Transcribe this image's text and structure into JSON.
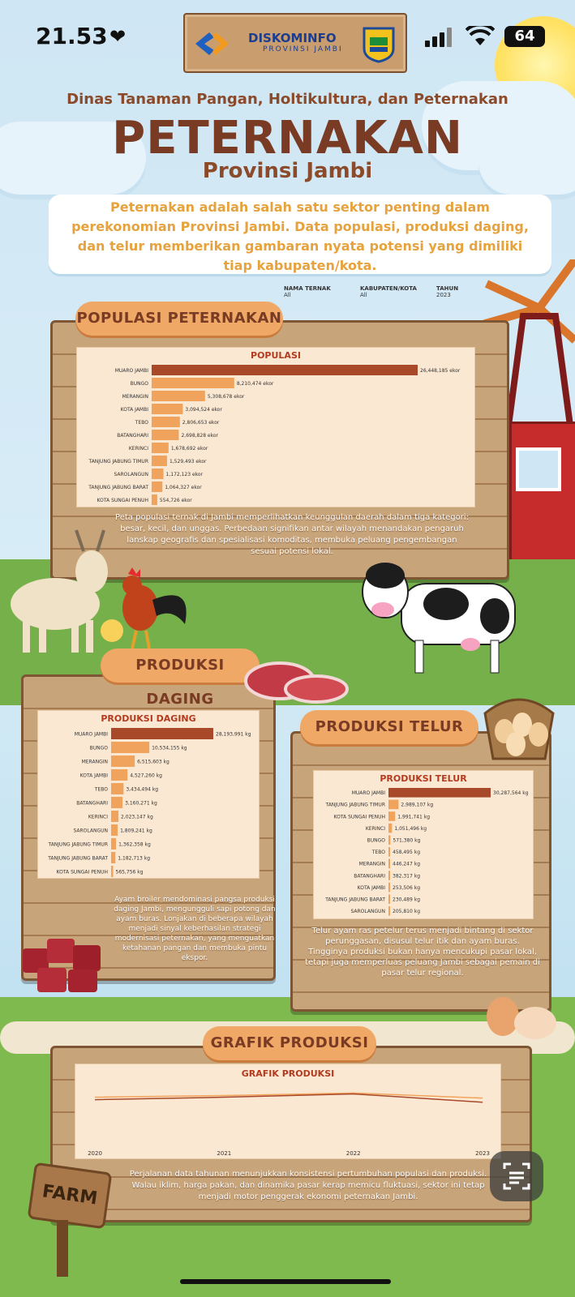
{
  "status_bar": {
    "time": "21.53",
    "battery": "64"
  },
  "banner": {
    "brand": "DISKOMINFO",
    "sub": "PROVINSI JAMBI"
  },
  "header": {
    "dept": "Dinas Tanaman Pangan, Holtikultura, dan Peternakan",
    "title": "PETERNAKAN",
    "subtitle": "Provinsi Jambi",
    "intro": "Peternakan adalah salah satu sektor penting dalam perekonomian Provinsi Jambi. Data populasi, produksi daging, dan telur memberikan gambaran nyata potensi yang dimiliki tiap kabupaten/kota."
  },
  "filters": [
    {
      "label": "NAMA TERNAK",
      "value": "All"
    },
    {
      "label": "KABUPATEN/KOTA",
      "value": "All"
    },
    {
      "label": "TAHUN",
      "value": "2023"
    }
  ],
  "sections": {
    "populasi": {
      "pill": "POPULASI PETERNAKAN",
      "caption": "Peta populasi ternak di Jambi memperlihatkan keunggulan daerah dalam tiga kategori: besar, kecil, dan unggas. Perbedaan signifikan antar wilayah menandakan pengaruh lanskap geografis dan spesialisasi komoditas, membuka peluang pengembangan sesuai potensi lokal."
    },
    "daging": {
      "pill": "PRODUKSI DAGING",
      "caption": "Ayam broiler mendominasi pangsa produksi daging Jambi, mengungguli sapi potong dan ayam buras. Lonjakan di beberapa wilayah menjadi sinyal keberhasilan strategi modernisasi peternakan, yang menguatkan ketahanan pangan dan membuka pintu ekspor."
    },
    "telur": {
      "pill": "PRODUKSI TELUR",
      "caption": "Telur ayam ras petelur terus menjadi bintang di sektor perunggasan, disusul telur itik dan ayam buras. Tingginya produksi bukan hanya mencukupi pasar lokal, tetapi juga memperluas peluang Jambi sebagai pemain di pasar telur regional."
    },
    "grafik": {
      "pill": "GRAFIK PRODUKSI",
      "caption": "Perjalanan data tahunan menunjukkan konsistensi pertumbuhan populasi dan produksi. Walau iklim, harga pakan, dan dinamika pasar kerap memicu fluktuasi, sektor ini tetap menjadi motor penggerak ekonomi peternakan Jambi."
    }
  },
  "farm_sign": "FARM",
  "colors": {
    "accent_bar": "#a8492a",
    "bar": "#f0a35c",
    "line1": "#f0a35c",
    "line2": "#a8492a",
    "pill": "#efa866"
  },
  "chart_data": [
    {
      "type": "bar",
      "title": "POPULASI",
      "categories": [
        "MUARO JAMBI",
        "BUNGO",
        "MERANGIN",
        "KOTA JAMBI",
        "TEBO",
        "BATANGHARI",
        "KERINCI",
        "TANJUNG JABUNG TIMUR",
        "SAROLANGUN",
        "TANJUNG JABUNG BARAT",
        "KOTA SUNGAI PENUH"
      ],
      "values": [
        26448185,
        8210474,
        5308678,
        3094524,
        2806653,
        2698828,
        1678692,
        1529493,
        1172123,
        1064327,
        554726
      ],
      "labels": [
        "26,448,185 ekor",
        "8,210,474 ekor",
        "5,308,678 ekor",
        "3,094,524 ekor",
        "2,806,653 ekor",
        "2,698,828 ekor",
        "1,678,692 ekor",
        "1,529,493 ekor",
        "1,172,123 ekor",
        "1,064,327 ekor",
        "554,726 ekor"
      ]
    },
    {
      "type": "bar",
      "title": "PRODUKSI DAGING",
      "categories": [
        "MUARO JAMBI",
        "BUNGO",
        "MERANGIN",
        "KOTA JAMBI",
        "TEBO",
        "BATANGHARI",
        "KERINCI",
        "SAROLANGUN",
        "TANJUNG JABUNG TIMUR",
        "TANJUNG JABUNG BARAT",
        "KOTA SUNGAI PENUH"
      ],
      "values": [
        28193991,
        10534155,
        6515603,
        4527260,
        3434494,
        3160271,
        2023147,
        1809241,
        1362358,
        1182713,
        565756
      ],
      "labels": [
        "28,193,991 kg",
        "10,534,155 kg",
        "6,515,603 kg",
        "4,527,260 kg",
        "3,434,494 kg",
        "3,160,271 kg",
        "2,023,147 kg",
        "1,809,241 kg",
        "1,362,358 kg",
        "1,182,713 kg",
        "565,756 kg"
      ]
    },
    {
      "type": "bar",
      "title": "PRODUKSI TELUR",
      "categories": [
        "MUARO JAMBI",
        "TANJUNG JABUNG TIMUR",
        "KOTA SUNGAI PENUH",
        "KERINCI",
        "BUNGO",
        "TEBO",
        "MERANGIN",
        "BATANGHARI",
        "KOTA JAMBI",
        "TANJUNG JABUNG BARAT",
        "SAROLANGUN"
      ],
      "values": [
        30287564,
        2989107,
        1991741,
        1051496,
        571380,
        458495,
        446247,
        382317,
        253506,
        230489,
        205810
      ],
      "labels": [
        "30,287,564 kg",
        "2,989,107 kg",
        "1,991,741 kg",
        "1,051,496 kg",
        "571,380 kg",
        "458,495 kg",
        "446,247 kg",
        "382,317 kg",
        "253,506 kg",
        "230,489 kg",
        "205,810 kg"
      ]
    },
    {
      "type": "line",
      "title": "GRAFIK PRODUKSI",
      "x": [
        "2020",
        "2021",
        "2022",
        "2023"
      ],
      "series": [
        {
          "values": [
            58,
            60,
            63,
            57
          ]
        },
        {
          "values": [
            55,
            58,
            62,
            52
          ]
        }
      ],
      "ylim": [
        0,
        80
      ]
    }
  ]
}
